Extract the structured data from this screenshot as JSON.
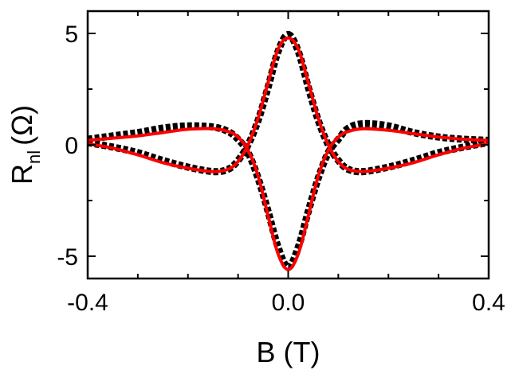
{
  "chart_data": {
    "type": "line",
    "xlabel": "B (T)",
    "ylabel": {
      "main": "R",
      "subscript": "nl",
      "unit": "(Ω)"
    },
    "xlim": [
      -0.4,
      0.4
    ],
    "ylim": [
      -6,
      6
    ],
    "x_ticks": [
      -0.4,
      0.0,
      0.4
    ],
    "x_tick_labels": [
      "-0.4",
      "0.0",
      "0.4"
    ],
    "y_ticks": [
      -5,
      0,
      5
    ],
    "y_tick_labels": [
      "-5",
      "0",
      "5"
    ],
    "grid": false,
    "legend": "none",
    "series": [
      {
        "style": "dashed-markers",
        "color": "#000000",
        "x": [
          -0.4,
          -0.35,
          -0.3,
          -0.25,
          -0.2,
          -0.15,
          -0.12,
          -0.1,
          -0.08,
          -0.06,
          -0.04,
          -0.02,
          0.0,
          0.02,
          0.04,
          0.06,
          0.08,
          0.1,
          0.12,
          0.15,
          0.2,
          0.25,
          0.3,
          0.35,
          0.4
        ],
        "y": [
          0.25,
          0.4,
          0.55,
          0.75,
          0.85,
          0.8,
          0.6,
          0.25,
          -0.35,
          -1.5,
          -3.0,
          -4.6,
          -5.5,
          -4.6,
          -3.0,
          -1.5,
          -0.35,
          0.25,
          0.75,
          0.95,
          0.85,
          0.55,
          0.35,
          0.25,
          0.2
        ]
      },
      {
        "style": "dashed-markers",
        "color": "#000000",
        "x": [
          -0.4,
          -0.35,
          -0.3,
          -0.25,
          -0.2,
          -0.15,
          -0.12,
          -0.1,
          -0.08,
          -0.06,
          -0.04,
          -0.02,
          0.0,
          0.02,
          0.04,
          0.06,
          0.08,
          0.1,
          0.12,
          0.15,
          0.2,
          0.25,
          0.3,
          0.35,
          0.4
        ],
        "y": [
          0.1,
          -0.1,
          -0.35,
          -0.7,
          -1.0,
          -1.2,
          -1.1,
          -0.7,
          0.0,
          1.1,
          2.6,
          4.2,
          4.95,
          4.2,
          2.6,
          1.1,
          0.0,
          -0.7,
          -1.1,
          -1.2,
          -1.0,
          -0.7,
          -0.35,
          -0.1,
          0.1
        ]
      },
      {
        "style": "solid",
        "color": "#ff0000",
        "x": [
          -0.4,
          -0.35,
          -0.3,
          -0.25,
          -0.2,
          -0.15,
          -0.12,
          -0.1,
          -0.08,
          -0.06,
          -0.04,
          -0.02,
          0.0,
          0.02,
          0.04,
          0.06,
          0.08,
          0.1,
          0.12,
          0.15,
          0.2,
          0.25,
          0.3,
          0.35,
          0.4
        ],
        "y": [
          0.2,
          0.3,
          0.4,
          0.55,
          0.7,
          0.72,
          0.6,
          0.35,
          -0.25,
          -1.4,
          -3.2,
          -4.9,
          -5.6,
          -4.9,
          -3.2,
          -1.4,
          -0.25,
          0.35,
          0.6,
          0.72,
          0.65,
          0.5,
          0.35,
          0.25,
          0.2
        ]
      },
      {
        "style": "solid",
        "color": "#ff0000",
        "x": [
          -0.4,
          -0.35,
          -0.3,
          -0.25,
          -0.2,
          -0.15,
          -0.12,
          -0.1,
          -0.08,
          -0.06,
          -0.04,
          -0.02,
          0.0,
          0.02,
          0.04,
          0.06,
          0.08,
          0.1,
          0.12,
          0.15,
          0.2,
          0.25,
          0.3,
          0.35,
          0.4
        ],
        "y": [
          0.05,
          -0.15,
          -0.45,
          -0.8,
          -1.05,
          -1.2,
          -1.1,
          -0.75,
          0.0,
          1.2,
          2.8,
          4.3,
          4.8,
          4.3,
          2.8,
          1.2,
          0.0,
          -0.75,
          -1.1,
          -1.2,
          -1.05,
          -0.8,
          -0.45,
          -0.15,
          0.05
        ]
      }
    ]
  }
}
